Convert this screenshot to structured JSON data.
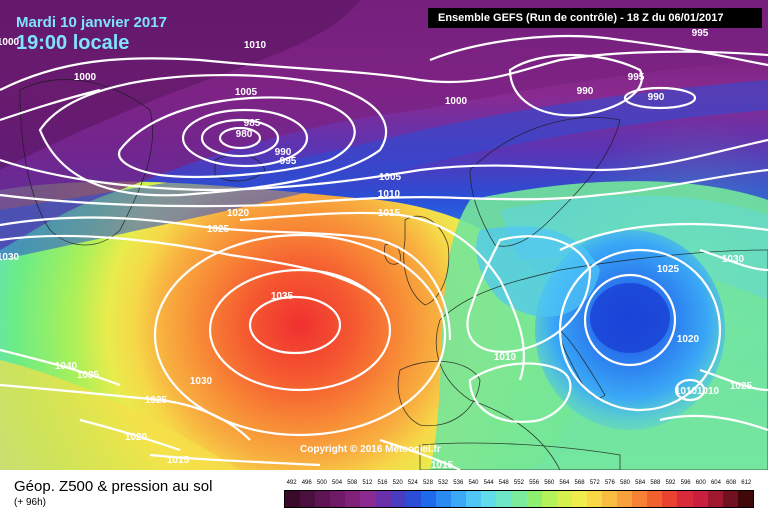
{
  "header": {
    "date": "Mardi 10 janvier 2017",
    "time": "19:00 locale",
    "run_info": "Ensemble GEFS  (Run de contrôle)  -  18 Z du 06/01/2017"
  },
  "footer": {
    "title": "Géop. Z500 & pression au sol",
    "lead": "(+ 96h)",
    "copyright": "Copyright © 2016 Meteociel.fr"
  },
  "legend": {
    "values": [
      "492",
      "496",
      "500",
      "504",
      "508",
      "512",
      "516",
      "520",
      "524",
      "528",
      "532",
      "536",
      "540",
      "544",
      "548",
      "552",
      "556",
      "560",
      "564",
      "568",
      "572",
      "576",
      "580",
      "584",
      "588",
      "592",
      "596",
      "600",
      "604",
      "608",
      "612"
    ],
    "colors": [
      "#3a0a2a",
      "#4b0f3d",
      "#5e1452",
      "#6f1a66",
      "#80207a",
      "#8a2a90",
      "#6a2ea8",
      "#4a3cc0",
      "#2a4ed6",
      "#1e6aea",
      "#2a8af2",
      "#3aa8f6",
      "#4ec6f6",
      "#60dcea",
      "#6ee6c8",
      "#7aec9c",
      "#8ef070",
      "#b4f25a",
      "#d6f04e",
      "#f0ec4c",
      "#f8d846",
      "#f8bc40",
      "#f8a03a",
      "#f68034",
      "#f2602e",
      "#ea4230",
      "#d82a3a",
      "#c8203e",
      "#a01830",
      "#701020",
      "#400808"
    ]
  },
  "isobars": [
    "1000",
    "1010",
    "1005",
    "985",
    "980",
    "990",
    "995",
    "1000",
    "995",
    "990",
    "990",
    "995",
    "1005",
    "1010",
    "1015",
    "1020",
    "1025",
    "1030",
    "1035",
    "1040",
    "1035",
    "1025",
    "1030",
    "1020",
    "1015",
    "1015",
    "1010",
    "1025",
    "1030",
    "1020",
    "1010",
    "1010",
    "1025",
    "1000"
  ],
  "colors": {
    "header_text": "#7fe3ff",
    "isobar": "#ffffff"
  }
}
